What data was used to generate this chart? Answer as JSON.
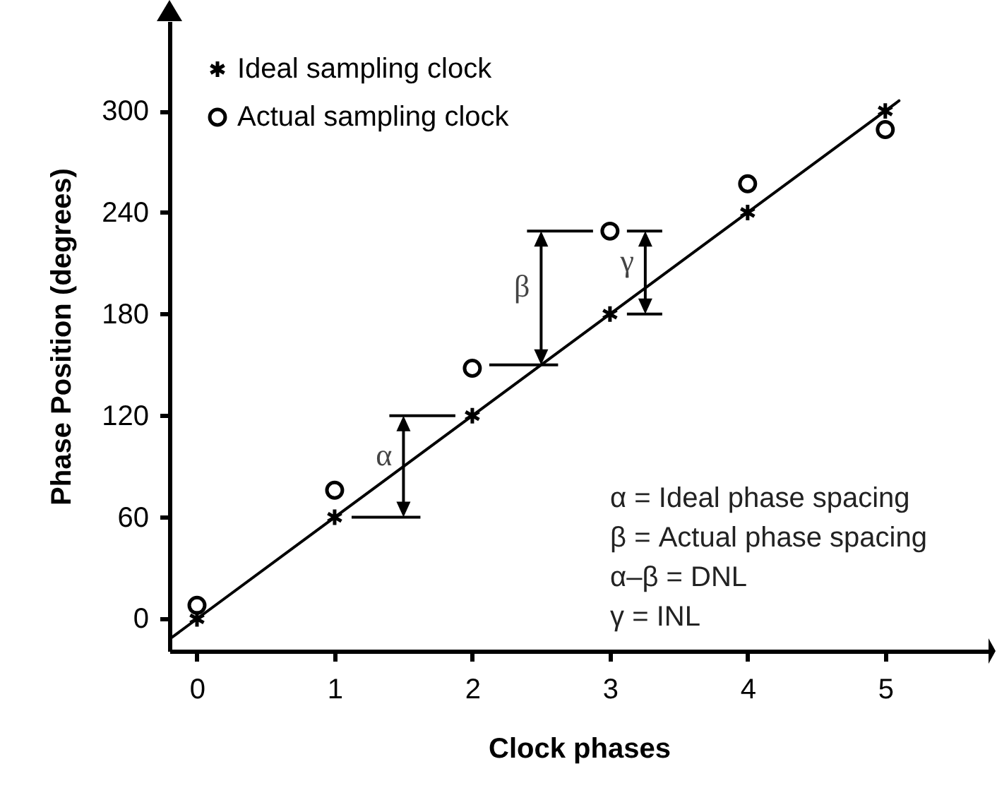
{
  "chart_data": {
    "type": "scatter",
    "xlabel": "Clock phases",
    "ylabel": "Phase Position (degrees)",
    "x": [
      0,
      1,
      2,
      3,
      4,
      5
    ],
    "xlim": [
      -0.2,
      5.75
    ],
    "xticks": [
      0,
      1,
      2,
      3,
      4,
      5
    ],
    "ylim": [
      -19,
      353
    ],
    "yticks": [
      0,
      60,
      120,
      180,
      240,
      300
    ],
    "series": [
      {
        "name": "Ideal sampling clock",
        "marker": "cross",
        "color": "#000000",
        "values": [
          0,
          60,
          120,
          180,
          240,
          300
        ]
      },
      {
        "name": "Actual sampling clock",
        "marker": "circle",
        "color": "#000000",
        "values": [
          8,
          76,
          148,
          229,
          257,
          289
        ]
      },
      {
        "type": "line",
        "color": "#000000",
        "x": [
          -0.2,
          5.1
        ],
        "values": [
          -12,
          306
        ]
      }
    ],
    "annotations": [
      "α",
      {
        "text": "β",
        "x": 2.5,
        "y": 150
      },
      "γ",
      "α = Ideal phase spacing",
      "β = Actual phase spacing",
      "α–β = DNL",
      "γ = INL"
    ],
    "legend": "top left",
    "grid": false
  }
}
